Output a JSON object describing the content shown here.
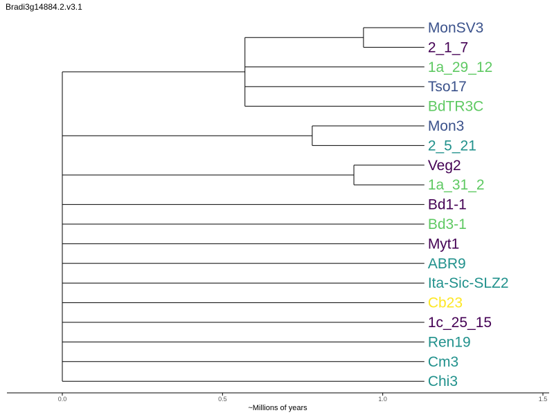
{
  "title": "Bradi3g14884.2.v3.1",
  "x_axis": {
    "label": "~Millions of years",
    "range": [
      0.0,
      1.5
    ],
    "ticks": [
      {
        "value": 0.0,
        "label": "0.0"
      },
      {
        "value": 0.5,
        "label": "0.5"
      },
      {
        "value": 1.0,
        "label": "1.0"
      },
      {
        "value": 1.5,
        "label": "1.5"
      }
    ]
  },
  "colors": {
    "blue": "#3b528b",
    "purple": "#440154",
    "green": "#5ec962",
    "teal": "#21918c",
    "yellow": "#fde725"
  },
  "tree": {
    "root_x": 0.0,
    "leaf_x": 1.13,
    "children": [
      {
        "node_x": 0.57,
        "children": [
          {
            "node_x": 0.94,
            "children": [
              {
                "leaf": "MonSV3",
                "color": "blue"
              },
              {
                "leaf": "2_1_7",
                "color": "purple"
              }
            ]
          },
          {
            "leaf": "1a_29_12",
            "color": "green"
          },
          {
            "leaf": "Tso17",
            "color": "blue"
          },
          {
            "leaf": "BdTR3C",
            "color": "green"
          }
        ]
      },
      {
        "node_x": 0.78,
        "children": [
          {
            "leaf": "Mon3",
            "color": "blue"
          },
          {
            "leaf": "2_5_21",
            "color": "teal"
          }
        ]
      },
      {
        "node_x": 0.91,
        "children": [
          {
            "leaf": "Veg2",
            "color": "purple"
          },
          {
            "leaf": "1a_31_2",
            "color": "green"
          }
        ]
      },
      {
        "leaf": "Bd1-1",
        "color": "purple"
      },
      {
        "leaf": "Bd3-1",
        "color": "green"
      },
      {
        "leaf": "Myt1",
        "color": "purple"
      },
      {
        "leaf": "ABR9",
        "color": "teal"
      },
      {
        "leaf": "Ita-Sic-SLZ2",
        "color": "teal"
      },
      {
        "leaf": "Cb23",
        "color": "yellow"
      },
      {
        "leaf": "1c_25_15",
        "color": "purple"
      },
      {
        "leaf": "Ren19",
        "color": "teal"
      },
      {
        "leaf": "Cm3",
        "color": "teal"
      },
      {
        "leaf": "Chi3",
        "color": "teal"
      }
    ]
  }
}
